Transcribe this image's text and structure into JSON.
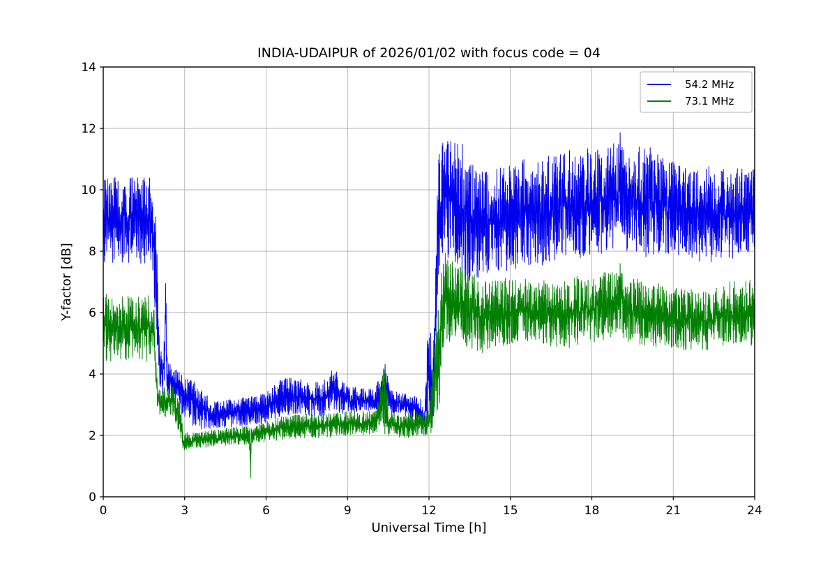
{
  "chart_data": {
    "type": "line",
    "title": "INDIA-UDAIPUR of 2026/01/02 with focus code = 04",
    "xlabel": "Universal Time [h]",
    "ylabel": "Y-factor [dB]",
    "xlim": [
      0,
      24
    ],
    "ylim": [
      0,
      14
    ],
    "xticks": [
      0,
      3,
      6,
      9,
      12,
      15,
      18,
      21,
      24
    ],
    "yticks": [
      0,
      2,
      4,
      6,
      8,
      10,
      12,
      14
    ],
    "grid": true,
    "grid_color": "#b0b0b0",
    "legend_position": "upper right",
    "series": [
      {
        "name": "54.2 MHz",
        "color": "#0000ee",
        "description": "noisy band: ~7.6-10.5 dB from 0-1.9h, drops to ~2.2-3.8 dB band from 3-12h with spike to 7.5 at 2.3h and 4.5 at 10.5h, jumps at 12.4h to ~7.6-11.8 dB band until 24h with max spike 12.1 at 19h",
        "envelope": {
          "x": [
            0,
            1.8,
            1.95,
            2.1,
            2.25,
            2.3,
            2.35,
            2.6,
            2.95,
            3.05,
            3.2,
            3.3,
            3.6,
            4.0,
            5.0,
            6.0,
            6.5,
            7.0,
            8.0,
            8.5,
            9.0,
            10.0,
            10.45,
            10.55,
            11.0,
            11.5,
            11.85,
            11.95,
            12.05,
            12.15,
            12.35,
            12.45,
            13.0,
            13.3,
            13.6,
            14.0,
            15.0,
            16.0,
            17.0,
            18.0,
            18.9,
            19.05,
            19.2,
            20.0,
            21.0,
            22.0,
            23.0,
            24.0
          ],
          "low": [
            7.6,
            7.6,
            5.5,
            3.2,
            3.4,
            4.5,
            3.2,
            3.1,
            2.6,
            2.5,
            2.6,
            2.3,
            2.2,
            2.2,
            2.3,
            2.4,
            2.6,
            2.7,
            2.6,
            2.7,
            2.7,
            2.8,
            2.7,
            2.7,
            2.6,
            2.5,
            1.6,
            2.0,
            2.2,
            2.4,
            6.5,
            7.8,
            7.6,
            6.8,
            7.0,
            7.1,
            7.4,
            7.5,
            7.6,
            7.8,
            8.0,
            8.4,
            8.0,
            7.8,
            7.8,
            7.6,
            7.7,
            7.9
          ],
          "high": [
            10.5,
            10.5,
            9.0,
            4.8,
            5.2,
            7.5,
            4.6,
            4.2,
            4.0,
            3.9,
            3.9,
            3.8,
            3.6,
            3.1,
            3.2,
            3.4,
            3.8,
            3.9,
            3.7,
            4.2,
            3.6,
            3.5,
            4.5,
            3.5,
            3.4,
            3.3,
            3.2,
            6.0,
            5.8,
            4.5,
            11.8,
            11.8,
            11.7,
            11.5,
            10.9,
            10.8,
            11.0,
            11.0,
            11.3,
            11.4,
            11.6,
            12.1,
            11.2,
            11.5,
            10.9,
            10.8,
            10.7,
            10.7
          ]
        }
      },
      {
        "name": "73.1 MHz",
        "color": "#008000",
        "description": "noisy band: ~4.4-6.6 dB from 0-1.9h, drops to ~1.5-2.8 dB band from 3-12h with dip to 0 at 5.4h and spike to 4.5 at 10.4h, jumps at 12.5h to ~4.8-7.6 dB band until 24h with spikes to ~8.2 at 12.5h and 7.8 at 19h",
        "envelope": {
          "x": [
            0,
            1.85,
            2.0,
            2.1,
            2.6,
            2.8,
            2.95,
            3.5,
            4.0,
            5.0,
            5.38,
            5.42,
            5.46,
            6.0,
            7.0,
            8.0,
            9.0,
            10.0,
            10.4,
            10.5,
            11.0,
            12.0,
            12.2,
            12.45,
            12.55,
            12.7,
            13.0,
            13.5,
            14.0,
            15.0,
            16.0,
            17.0,
            18.0,
            18.9,
            19.05,
            19.2,
            20.0,
            21.0,
            22.0,
            23.0,
            24.0
          ],
          "low": [
            4.4,
            4.4,
            2.9,
            2.6,
            2.6,
            2.0,
            1.5,
            1.6,
            1.6,
            1.7,
            1.7,
            0.0,
            1.7,
            1.8,
            1.9,
            1.9,
            2.0,
            2.0,
            2.0,
            2.0,
            1.9,
            2.0,
            2.2,
            3.0,
            4.8,
            5.0,
            5.2,
            4.8,
            4.6,
            5.0,
            5.0,
            4.8,
            5.0,
            5.2,
            5.4,
            5.1,
            4.9,
            4.8,
            4.7,
            4.9,
            4.9
          ],
          "high": [
            6.6,
            6.6,
            3.7,
            3.6,
            3.6,
            3.2,
            2.1,
            2.1,
            2.2,
            2.3,
            2.3,
            2.3,
            2.3,
            2.5,
            2.7,
            2.7,
            2.8,
            2.8,
            4.5,
            2.8,
            2.7,
            2.8,
            4.8,
            8.2,
            8.0,
            8.0,
            7.6,
            7.4,
            7.0,
            7.2,
            7.0,
            7.2,
            7.2,
            7.4,
            7.8,
            7.2,
            7.0,
            6.9,
            6.7,
            7.0,
            7.1
          ]
        }
      }
    ]
  }
}
